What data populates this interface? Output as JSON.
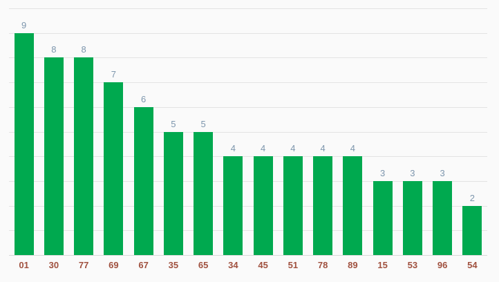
{
  "chart_data": {
    "type": "bar",
    "title": "",
    "xlabel": "",
    "ylabel": "",
    "categories": [
      "01",
      "30",
      "77",
      "69",
      "67",
      "35",
      "65",
      "34",
      "45",
      "51",
      "78",
      "89",
      "15",
      "53",
      "96",
      "54"
    ],
    "values": [
      9,
      8,
      8,
      7,
      6,
      5,
      5,
      4,
      4,
      4,
      4,
      4,
      3,
      3,
      3,
      2
    ],
    "ylim": [
      0,
      10
    ],
    "grid": true,
    "gridline_step": 1,
    "gridline_count": 11,
    "legend_position": "none",
    "y_axis_labels_shown": false,
    "annotations_shown": true
  },
  "colors": {
    "background": "#fafafa",
    "bar": "#00a94f",
    "gridline": "#e3e3e3",
    "baseline": "#d8d8d8",
    "value_label": "#7d96ad",
    "category_label": "#a0513f"
  }
}
